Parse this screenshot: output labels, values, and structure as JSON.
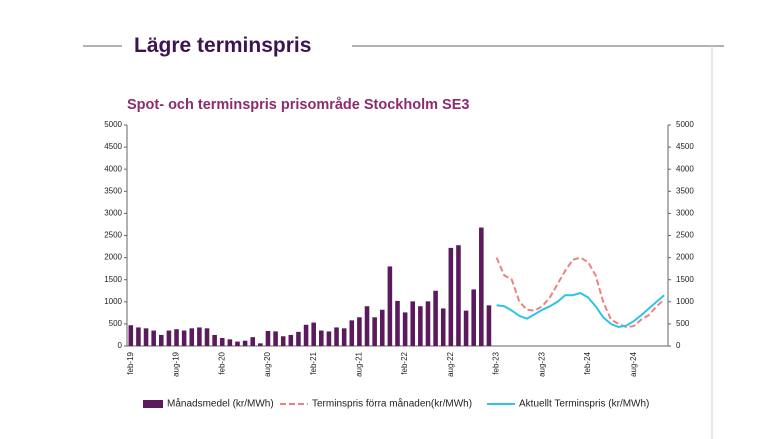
{
  "slide_title": "Lägre terminspris",
  "chart_data": {
    "type": "bar_line",
    "title": "Spot- och terminspris prisområde Stockholm SE3",
    "categories": [
      "feb-19",
      null,
      null,
      null,
      null,
      null,
      "aug-19",
      null,
      null,
      null,
      null,
      null,
      "feb-20",
      null,
      null,
      null,
      null,
      null,
      "aug-20",
      null,
      null,
      null,
      null,
      null,
      "feb-21",
      null,
      null,
      null,
      null,
      null,
      "aug-21",
      null,
      null,
      null,
      null,
      null,
      "feb-22",
      null,
      null,
      null,
      null,
      null,
      "aug-22",
      null,
      null,
      null,
      null,
      null,
      "feb-23",
      null,
      null,
      null,
      null,
      null,
      "aug-23",
      null,
      null,
      null,
      null,
      null,
      "feb-24",
      null,
      null,
      null,
      null,
      null,
      "aug-24",
      null,
      null,
      null,
      null
    ],
    "series": [
      {
        "name": "Månadsmedel (kr/MWh)",
        "type": "bar",
        "color": "#5b1a5e",
        "values": [
          470,
          420,
          400,
          350,
          250,
          350,
          380,
          350,
          400,
          420,
          400,
          250,
          180,
          150,
          100,
          120,
          200,
          60,
          340,
          330,
          220,
          250,
          320,
          480,
          530,
          350,
          330,
          420,
          400,
          580,
          650,
          900,
          650,
          820,
          1800,
          1020,
          760,
          1010,
          900,
          1010,
          1250,
          850,
          2220,
          2280,
          800,
          1280,
          2680,
          920,
          null,
          null,
          null,
          null,
          null,
          null,
          null,
          null,
          null,
          null,
          null,
          null,
          null,
          null,
          null,
          null,
          null,
          null,
          null,
          null,
          null,
          null,
          null
        ]
      },
      {
        "name": "Terminspris förra månaden(kr/MWh)",
        "type": "line",
        "dashed": true,
        "axis": "y2",
        "color": "#f08080",
        "values": [
          null,
          null,
          null,
          null,
          null,
          null,
          null,
          null,
          null,
          null,
          null,
          null,
          null,
          null,
          null,
          null,
          null,
          null,
          null,
          null,
          null,
          null,
          null,
          null,
          null,
          null,
          null,
          null,
          null,
          null,
          null,
          null,
          null,
          null,
          null,
          null,
          null,
          null,
          null,
          null,
          null,
          null,
          null,
          null,
          null,
          null,
          null,
          null,
          2000,
          1600,
          1500,
          1000,
          820,
          800,
          900,
          1100,
          1400,
          1700,
          1950,
          2000,
          1900,
          1600,
          1000,
          600,
          500,
          430,
          450,
          600,
          700,
          900,
          1050
        ]
      },
      {
        "name": "Aktuellt Terminspris (kr/MWh)",
        "type": "line",
        "dashed": false,
        "axis": "y2",
        "color": "#2ec4e6",
        "values": [
          null,
          null,
          null,
          null,
          null,
          null,
          null,
          null,
          null,
          null,
          null,
          null,
          null,
          null,
          null,
          null,
          null,
          null,
          null,
          null,
          null,
          null,
          null,
          null,
          null,
          null,
          null,
          null,
          null,
          null,
          null,
          null,
          null,
          null,
          null,
          null,
          null,
          null,
          null,
          null,
          null,
          null,
          null,
          null,
          null,
          null,
          null,
          null,
          920,
          900,
          800,
          680,
          620,
          720,
          820,
          900,
          1000,
          1150,
          1150,
          1200,
          1100,
          900,
          650,
          500,
          430,
          460,
          560,
          700,
          850,
          1000,
          1150
        ]
      }
    ],
    "ylim": [
      0,
      5000
    ],
    "yticks": [
      0,
      500,
      1000,
      1500,
      2000,
      2500,
      3000,
      3500,
      4000,
      4500,
      5000
    ],
    "y2lim": [
      0,
      5000
    ],
    "y2ticks": [
      0,
      500,
      1000,
      1500,
      2000,
      2500,
      3000,
      3500,
      4000,
      4500,
      5000
    ]
  }
}
